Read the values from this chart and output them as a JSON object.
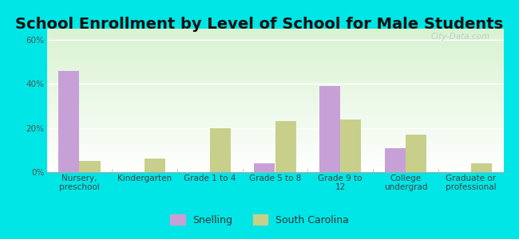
{
  "title": "School Enrollment by Level of School for Male Students",
  "categories": [
    "Nursery,\npreschool",
    "Kindergarten",
    "Grade 1 to 4",
    "Grade 5 to 8",
    "Grade 9 to\n12",
    "College\nundergrad",
    "Graduate or\nprofessional"
  ],
  "snelling": [
    46,
    0,
    0,
    4,
    39,
    11,
    0
  ],
  "south_carolina": [
    5,
    6,
    20,
    23,
    24,
    17,
    4
  ],
  "snelling_color": "#c8a0d8",
  "sc_color": "#c8cf8a",
  "background_color": "#00e5e5",
  "ylabel_ticks": [
    "0%",
    "20%",
    "40%",
    "60%"
  ],
  "yticks": [
    0,
    20,
    40,
    60
  ],
  "ylim": [
    0,
    65
  ],
  "legend_snelling": "Snelling",
  "legend_sc": "South Carolina",
  "bar_width": 0.32,
  "title_fontsize": 14,
  "tick_fontsize": 7.5,
  "legend_fontsize": 9
}
